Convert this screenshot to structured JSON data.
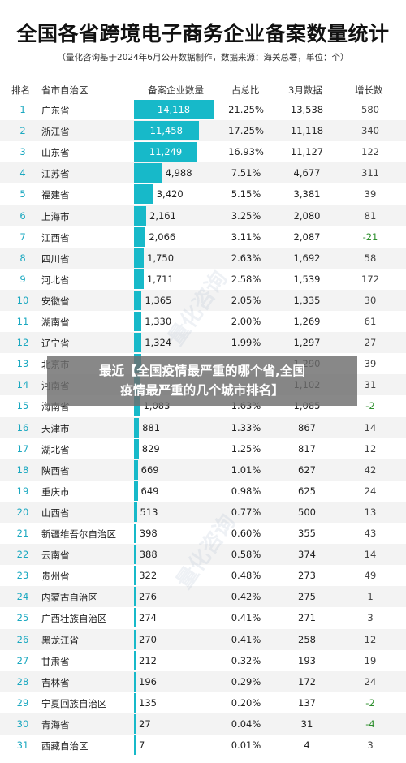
{
  "chart_data": {
    "type": "table",
    "title": "全国各省跨境电子商务企业备案数量统计",
    "subtitle": "（量化咨询基于2024年6月公开数据制作，数据来源：海关总署，单位：个）",
    "columns": [
      "排名",
      "省市自治区",
      "备案企业数量",
      "占总比",
      "3月数据",
      "增长数"
    ],
    "rows": [
      {
        "rank": "1",
        "province": "广东省",
        "count": 14118,
        "count_label": "14,118",
        "share": "21.25%",
        "march": "13,538",
        "growth": "580"
      },
      {
        "rank": "2",
        "province": "浙江省",
        "count": 11458,
        "count_label": "11,458",
        "share": "17.25%",
        "march": "11,118",
        "growth": "340"
      },
      {
        "rank": "3",
        "province": "山东省",
        "count": 11249,
        "count_label": "11,249",
        "share": "16.93%",
        "march": "11,127",
        "growth": "122"
      },
      {
        "rank": "4",
        "province": "江苏省",
        "count": 4988,
        "count_label": "4,988",
        "share": "7.51%",
        "march": "4,677",
        "growth": "311"
      },
      {
        "rank": "5",
        "province": "福建省",
        "count": 3420,
        "count_label": "3,420",
        "share": "5.15%",
        "march": "3,381",
        "growth": "39"
      },
      {
        "rank": "6",
        "province": "上海市",
        "count": 2161,
        "count_label": "2,161",
        "share": "3.25%",
        "march": "2,080",
        "growth": "81"
      },
      {
        "rank": "7",
        "province": "江西省",
        "count": 2066,
        "count_label": "2,066",
        "share": "3.11%",
        "march": "2,087",
        "growth": "-21"
      },
      {
        "rank": "8",
        "province": "四川省",
        "count": 1750,
        "count_label": "1,750",
        "share": "2.63%",
        "march": "1,692",
        "growth": "58"
      },
      {
        "rank": "9",
        "province": "河北省",
        "count": 1711,
        "count_label": "1,711",
        "share": "2.58%",
        "march": "1,539",
        "growth": "172"
      },
      {
        "rank": "10",
        "province": "安徽省",
        "count": 1365,
        "count_label": "1,365",
        "share": "2.05%",
        "march": "1,335",
        "growth": "30"
      },
      {
        "rank": "11",
        "province": "湖南省",
        "count": 1330,
        "count_label": "1,330",
        "share": "2.00%",
        "march": "1,269",
        "growth": "61"
      },
      {
        "rank": "12",
        "province": "辽宁省",
        "count": 1324,
        "count_label": "1,324",
        "share": "1.99%",
        "march": "1,297",
        "growth": "27"
      },
      {
        "rank": "13",
        "province": "北京市",
        "count": 1329,
        "count_label": "",
        "share": "",
        "march": "1,290",
        "growth": "39"
      },
      {
        "rank": "14",
        "province": "河南省",
        "count": 1133,
        "count_label": "",
        "share": "",
        "march": "1,102",
        "growth": "31"
      },
      {
        "rank": "15",
        "province": "海南省",
        "count": 1083,
        "count_label": "1,083",
        "share": "1.63%",
        "march": "1,085",
        "growth": "-2"
      },
      {
        "rank": "16",
        "province": "天津市",
        "count": 881,
        "count_label": "881",
        "share": "1.33%",
        "march": "867",
        "growth": "14"
      },
      {
        "rank": "17",
        "province": "湖北省",
        "count": 829,
        "count_label": "829",
        "share": "1.25%",
        "march": "817",
        "growth": "12"
      },
      {
        "rank": "18",
        "province": "陕西省",
        "count": 669,
        "count_label": "669",
        "share": "1.01%",
        "march": "627",
        "growth": "42"
      },
      {
        "rank": "19",
        "province": "重庆市",
        "count": 649,
        "count_label": "649",
        "share": "0.98%",
        "march": "625",
        "growth": "24"
      },
      {
        "rank": "20",
        "province": "山西省",
        "count": 513,
        "count_label": "513",
        "share": "0.77%",
        "march": "500",
        "growth": "13"
      },
      {
        "rank": "21",
        "province": "新疆维吾尔自治区",
        "count": 398,
        "count_label": "398",
        "share": "0.60%",
        "march": "355",
        "growth": "43"
      },
      {
        "rank": "22",
        "province": "云南省",
        "count": 388,
        "count_label": "388",
        "share": "0.58%",
        "march": "374",
        "growth": "14"
      },
      {
        "rank": "23",
        "province": "贵州省",
        "count": 322,
        "count_label": "322",
        "share": "0.48%",
        "march": "273",
        "growth": "49"
      },
      {
        "rank": "24",
        "province": "内蒙古自治区",
        "count": 276,
        "count_label": "276",
        "share": "0.42%",
        "march": "275",
        "growth": "1"
      },
      {
        "rank": "25",
        "province": "广西壮族自治区",
        "count": 274,
        "count_label": "274",
        "share": "0.41%",
        "march": "271",
        "growth": "3"
      },
      {
        "rank": "26",
        "province": "黑龙江省",
        "count": 270,
        "count_label": "270",
        "share": "0.41%",
        "march": "258",
        "growth": "12"
      },
      {
        "rank": "27",
        "province": "甘肃省",
        "count": 212,
        "count_label": "212",
        "share": "0.32%",
        "march": "193",
        "growth": "19"
      },
      {
        "rank": "28",
        "province": "吉林省",
        "count": 196,
        "count_label": "196",
        "share": "0.29%",
        "march": "172",
        "growth": "24"
      },
      {
        "rank": "29",
        "province": "宁夏回族自治区",
        "count": 135,
        "count_label": "135",
        "share": "0.20%",
        "march": "137",
        "growth": "-2"
      },
      {
        "rank": "30",
        "province": "青海省",
        "count": 27,
        "count_label": "27",
        "share": "0.04%",
        "march": "31",
        "growth": "-4"
      },
      {
        "rank": "31",
        "province": "西藏自治区",
        "count": 7,
        "count_label": "7",
        "share": "0.01%",
        "march": "4",
        "growth": "3"
      }
    ],
    "max_count": 14118,
    "bar_color": "#17b9c9",
    "negative_color": "#2e8f2e"
  },
  "banner": {
    "line1": "最近【全国疫情最严重的哪个省,全国",
    "line2": "疫情最严重的几个城市排名】"
  },
  "watermark": "量化咨询"
}
